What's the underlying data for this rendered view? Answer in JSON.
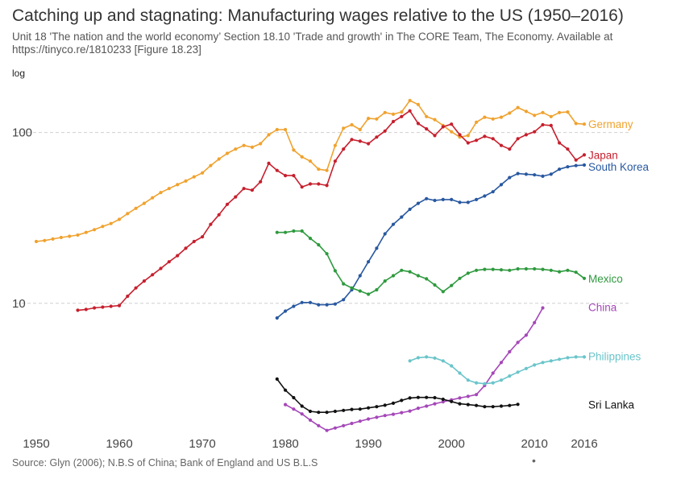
{
  "header": {
    "title": "Catching up and stagnating: Manufacturing wages relative to the US (1950–2016)",
    "subtitle_lines": [
      "Unit 18 'The nation and the world economy’ Section 18.10 'Trade and growth' in The CORE Team, The Economy. Available at",
      "https://tinyco.re/1810233 [Figure 18.23]"
    ]
  },
  "footer": {
    "note": "Source: Glyn (2006); N.B.S of China; Bank of England and US B.L.S",
    "dot": "•"
  },
  "chart_data": {
    "type": "line",
    "title": "Catching up and stagnating: Manufacturing wages relative to the US (1950–2016)",
    "ylabel": "log",
    "yscale": "log",
    "xlim": [
      1950,
      2016
    ],
    "ylim": [
      1.7,
      220
    ],
    "x_ticks": [
      1950,
      1960,
      1970,
      1980,
      1990,
      2000,
      2010,
      2016
    ],
    "y_ticks": [
      10,
      100
    ],
    "grid": "horizontal dashed at y ticks",
    "legend": "direct labels at line ends",
    "series": [
      {
        "name": "Germany",
        "color": "#f0a22e",
        "x": [
          1950,
          1951,
          1952,
          1953,
          1954,
          1955,
          1956,
          1957,
          1958,
          1959,
          1960,
          1961,
          1962,
          1963,
          1964,
          1965,
          1966,
          1967,
          1968,
          1969,
          1970,
          1971,
          1972,
          1973,
          1974,
          1975,
          1976,
          1977,
          1978,
          1979,
          1980,
          1981,
          1982,
          1983,
          1984,
          1985,
          1986,
          1987,
          1988,
          1989,
          1990,
          1991,
          1992,
          1993,
          1994,
          1995,
          1996,
          1997,
          1998,
          1999,
          2000,
          2001,
          2002,
          2003,
          2004,
          2005,
          2006,
          2007,
          2008,
          2009,
          2010,
          2011,
          2012,
          2013,
          2014,
          2015,
          2016
        ],
        "y": [
          23,
          23.3,
          23.8,
          24.3,
          24.7,
          25.1,
          26,
          27,
          28.2,
          29.3,
          31,
          33.5,
          36,
          38.5,
          41.5,
          44.5,
          47,
          49.5,
          52,
          55,
          58,
          64,
          70,
          75.5,
          80,
          84,
          82,
          86,
          97,
          104,
          104,
          79,
          72,
          68,
          61,
          60,
          84,
          106,
          111,
          104,
          121,
          120,
          131,
          128,
          132,
          154,
          146,
          124,
          119,
          110,
          101,
          94,
          96,
          115,
          123,
          120,
          123,
          130,
          140,
          133,
          126,
          131,
          124,
          131,
          132,
          113,
          112
        ]
      },
      {
        "name": "Japan",
        "color": "#c71f2d",
        "x": [
          1955,
          1956,
          1957,
          1958,
          1959,
          1960,
          1961,
          1962,
          1963,
          1964,
          1965,
          1966,
          1967,
          1968,
          1969,
          1970,
          1971,
          1972,
          1973,
          1974,
          1975,
          1976,
          1977,
          1978,
          1979,
          1980,
          1981,
          1982,
          1983,
          1984,
          1985,
          1986,
          1987,
          1988,
          1989,
          1990,
          1991,
          1992,
          1993,
          1994,
          1995,
          1996,
          1997,
          1998,
          1999,
          2000,
          2001,
          2002,
          2003,
          2004,
          2005,
          2006,
          2007,
          2008,
          2009,
          2010,
          2011,
          2012,
          2013,
          2014,
          2015,
          2016
        ],
        "y": [
          9.1,
          9.2,
          9.4,
          9.5,
          9.6,
          9.7,
          11,
          12.3,
          13.5,
          14.7,
          16,
          17.5,
          19,
          21,
          23,
          24.5,
          29,
          33,
          38,
          42,
          47,
          46,
          51.5,
          66,
          60,
          56,
          56,
          48,
          50,
          50,
          49,
          68,
          80,
          91,
          89,
          86,
          94,
          102,
          116,
          124,
          134,
          113,
          105,
          96,
          108,
          112,
          97,
          87,
          90,
          95,
          92,
          84,
          80,
          92,
          97,
          101,
          111,
          110,
          87,
          80,
          69,
          74
        ]
      },
      {
        "name": "South Korea",
        "color": "#2858a0",
        "x": [
          1979,
          1980,
          1981,
          1982,
          1983,
          1984,
          1985,
          1986,
          1987,
          1988,
          1989,
          1990,
          1991,
          1992,
          1993,
          1994,
          1995,
          1996,
          1997,
          1998,
          1999,
          2000,
          2001,
          2002,
          2003,
          2004,
          2005,
          2006,
          2007,
          2008,
          2009,
          2010,
          2011,
          2012,
          2013,
          2014,
          2015,
          2016
        ],
        "y": [
          8.2,
          9.0,
          9.6,
          10.1,
          10.1,
          9.8,
          9.8,
          9.9,
          10.5,
          12,
          14.5,
          17.5,
          21,
          25.5,
          29,
          32,
          35.5,
          38.5,
          41,
          40,
          40.5,
          40.5,
          39,
          39,
          40.5,
          42.5,
          45,
          49.5,
          54.5,
          57.5,
          57,
          56.5,
          55.5,
          57,
          61,
          63,
          64,
          64.5
        ]
      },
      {
        "name": "Mexico",
        "color": "#2e9a3e",
        "x": [
          1979,
          1980,
          1981,
          1982,
          1983,
          1984,
          1985,
          1986,
          1987,
          1988,
          1989,
          1990,
          1991,
          1992,
          1993,
          1994,
          1995,
          1996,
          1997,
          1998,
          1999,
          2000,
          2001,
          2002,
          2003,
          2004,
          2005,
          2006,
          2007,
          2008,
          2009,
          2010,
          2011,
          2012,
          2013,
          2014,
          2015,
          2016
        ],
        "y": [
          26,
          26,
          26.5,
          26.5,
          24,
          22,
          19.5,
          15.5,
          13,
          12.3,
          11.8,
          11.3,
          12,
          13.5,
          14.5,
          15.6,
          15.3,
          14.5,
          13.9,
          12.8,
          11.7,
          12.7,
          14,
          15,
          15.6,
          15.8,
          15.8,
          15.7,
          15.6,
          15.9,
          15.9,
          15.9,
          15.8,
          15.6,
          15.3,
          15.6,
          15.2,
          14
        ]
      },
      {
        "name": "China",
        "color": "#a547b8",
        "x": [
          1980,
          1981,
          1982,
          1983,
          1984,
          1985,
          1986,
          1987,
          1988,
          1989,
          1990,
          1991,
          1992,
          1993,
          1994,
          1995,
          1996,
          1997,
          1998,
          1999,
          2000,
          2001,
          2002,
          2003,
          2004,
          2005,
          2006,
          2007,
          2008,
          2009,
          2010,
          2011
        ],
        "y": [
          2.55,
          2.4,
          2.25,
          2.07,
          1.92,
          1.8,
          1.86,
          1.92,
          1.98,
          2.04,
          2.1,
          2.15,
          2.2,
          2.24,
          2.29,
          2.34,
          2.43,
          2.5,
          2.58,
          2.65,
          2.72,
          2.79,
          2.85,
          2.92,
          3.3,
          3.9,
          4.5,
          5.2,
          5.9,
          6.5,
          7.7,
          9.4
        ]
      },
      {
        "name": "Philippines",
        "color": "#6ac5ca",
        "x": [
          1995,
          1996,
          1997,
          1998,
          1999,
          2000,
          2001,
          2002,
          2003,
          2004,
          2005,
          2006,
          2007,
          2008,
          2009,
          2010,
          2011,
          2012,
          2013,
          2014,
          2015,
          2016
        ],
        "y": [
          4.6,
          4.8,
          4.85,
          4.78,
          4.6,
          4.3,
          3.9,
          3.55,
          3.42,
          3.38,
          3.42,
          3.55,
          3.75,
          3.95,
          4.15,
          4.35,
          4.5,
          4.6,
          4.7,
          4.8,
          4.85,
          4.85
        ]
      },
      {
        "name": "Sri Lanka",
        "color": "#111111",
        "x": [
          1979,
          1980,
          1981,
          1982,
          1983,
          1984,
          1985,
          1986,
          1987,
          1988,
          1989,
          1990,
          1991,
          1992,
          1993,
          1994,
          1995,
          1996,
          1997,
          1998,
          1999,
          2000,
          2001,
          2002,
          2003,
          2004,
          2005,
          2006,
          2007,
          2008
        ],
        "y": [
          3.6,
          3.1,
          2.8,
          2.5,
          2.33,
          2.3,
          2.3,
          2.33,
          2.36,
          2.39,
          2.4,
          2.44,
          2.48,
          2.53,
          2.6,
          2.7,
          2.79,
          2.81,
          2.81,
          2.8,
          2.74,
          2.66,
          2.58,
          2.55,
          2.52,
          2.48,
          2.48,
          2.5,
          2.52,
          2.56
        ]
      }
    ],
    "direct_labels": [
      {
        "name": "Germany",
        "color": "#f0a22e",
        "y_at": 112
      },
      {
        "name": "Japan",
        "color": "#c71f2d",
        "y_at": 74
      },
      {
        "name": "South Korea",
        "color": "#2858a0",
        "y_at": 63
      },
      {
        "name": "Mexico",
        "color": "#2e9a3e",
        "y_at": 14
      },
      {
        "name": "China",
        "color": "#a547b8",
        "y_at": 9.5
      },
      {
        "name": "Philippines",
        "color": "#6ac5ca",
        "y_at": 4.9
      },
      {
        "name": "Sri Lanka",
        "color": "#111111",
        "y_at": 2.56
      }
    ]
  }
}
